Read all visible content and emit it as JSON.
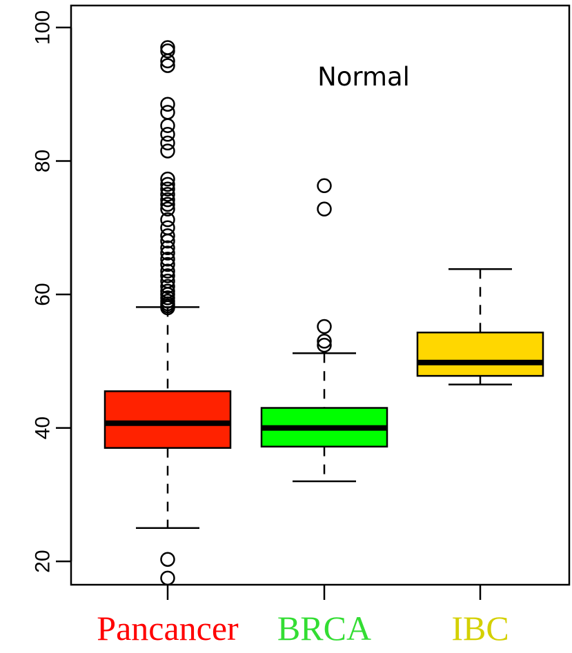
{
  "chart_data": {
    "type": "box",
    "annotation": "Normal",
    "ylim": [
      16.5,
      103.3
    ],
    "yticks": [
      20,
      40,
      60,
      80,
      100
    ],
    "categories": [
      {
        "name": "Pancancer",
        "color": "#ff2200",
        "label_color": "#ff0000"
      },
      {
        "name": "BRCA",
        "color": "#00ff00",
        "label_color": "#33dd33"
      },
      {
        "name": "IBC",
        "color": "#ffd700",
        "label_color": "#d4d000"
      }
    ],
    "boxes": [
      {
        "whisker_low": 25,
        "q1": 37,
        "median": 40.7,
        "q3": 45.5,
        "whisker_high": 58.1,
        "outliers": [
          17.5,
          20.3,
          58,
          58.3,
          58.6,
          59,
          59.5,
          60,
          60.5,
          61.2,
          62,
          62.8,
          63.5,
          64.5,
          65.3,
          66.2,
          67,
          68,
          68.8,
          70,
          71.2,
          72.8,
          73.5,
          74.2,
          75,
          75.8,
          76.5,
          77.3,
          81.5,
          82.7,
          84,
          85.3,
          87.3,
          88.5,
          94.3,
          95,
          96.5,
          97
        ]
      },
      {
        "whisker_low": 32,
        "q1": 37.2,
        "median": 40,
        "q3": 43,
        "whisker_high": 51.2,
        "outliers": [
          52.4,
          53,
          55.2,
          72.8,
          76.3
        ]
      },
      {
        "whisker_low": 46.5,
        "q1": 47.8,
        "median": 49.8,
        "q3": 54.3,
        "whisker_high": 63.8,
        "outliers": []
      }
    ]
  }
}
